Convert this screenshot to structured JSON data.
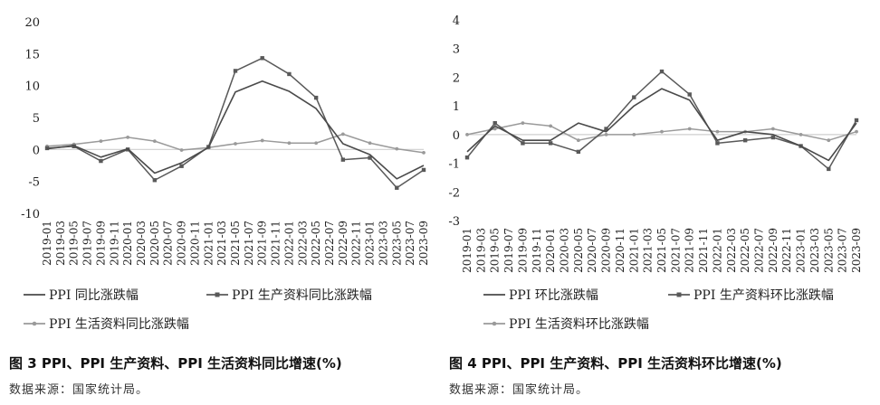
{
  "chart_data": [
    {
      "type": "line",
      "ylim": [
        -10,
        20
      ],
      "yticks": [
        -10,
        -5,
        0,
        5,
        10,
        15,
        20
      ],
      "categories": [
        "2019-01",
        "2019-03",
        "2019-05",
        "2019-07",
        "2019-09",
        "2019-11",
        "2020-01",
        "2020-03",
        "2020-05",
        "2020-07",
        "2020-09",
        "2020-11",
        "2021-01",
        "2021-03",
        "2021-05",
        "2021-07",
        "2021-09",
        "2021-11",
        "2022-01",
        "2022-03",
        "2022-05",
        "2022-07",
        "2022-09",
        "2022-11",
        "2023-01",
        "2023-03",
        "2023-05",
        "2023-07",
        "2023-09"
      ],
      "x": [
        "2019-01",
        "2019-05",
        "2019-09",
        "2020-01",
        "2020-05",
        "2020-09",
        "2021-01",
        "2021-05",
        "2021-09",
        "2022-01",
        "2022-05",
        "2022-09",
        "2023-01",
        "2023-05",
        "2023-09"
      ],
      "series": [
        {
          "name": "PPI 同比涨跌幅",
          "color": "#4a4a4a",
          "marker": "none",
          "values": [
            0.1,
            0.6,
            -1.2,
            0.1,
            -3.7,
            -2.1,
            0.3,
            9.0,
            10.7,
            9.1,
            6.4,
            0.9,
            -0.8,
            -4.6,
            -2.5
          ]
        },
        {
          "name": "PPI 生产资料同比涨跌幅",
          "color": "#595959",
          "marker": "square",
          "values": [
            0.2,
            0.5,
            -1.8,
            0.0,
            -4.8,
            -2.6,
            0.4,
            12.3,
            14.3,
            11.8,
            8.1,
            -1.6,
            -1.3,
            -6.0,
            -3.2
          ]
        },
        {
          "name": "PPI 生活资料同比涨跌幅",
          "color": "#9a9a9a",
          "marker": "dot",
          "values": [
            0.5,
            0.8,
            1.3,
            1.9,
            1.3,
            -0.1,
            0.3,
            0.9,
            1.4,
            1.0,
            1.0,
            2.4,
            1.0,
            0.1,
            -0.5
          ]
        }
      ]
    },
    {
      "type": "line",
      "ylim": [
        -3,
        4
      ],
      "yticks": [
        -3,
        -2,
        -1,
        0,
        1,
        2,
        3,
        4
      ],
      "categories": [
        "2019-01",
        "2019-03",
        "2019-05",
        "2019-07",
        "2019-09",
        "2019-11",
        "2020-01",
        "2020-03",
        "2020-05",
        "2020-07",
        "2020-09",
        "2020-11",
        "2021-01",
        "2021-03",
        "2021-05",
        "2021-07",
        "2021-09",
        "2021-11",
        "2022-01",
        "2022-03",
        "2022-05",
        "2022-07",
        "2022-09",
        "2022-11",
        "2023-01",
        "2023-03",
        "2023-05",
        "2023-07",
        "2023-09"
      ],
      "x": [
        "2019-01",
        "2019-05",
        "2019-09",
        "2020-01",
        "2020-05",
        "2020-09",
        "2021-01",
        "2021-05",
        "2021-09",
        "2022-01",
        "2022-05",
        "2022-09",
        "2023-01",
        "2023-05",
        "2023-09"
      ],
      "series": [
        {
          "name": "PPI 环比涨跌幅",
          "color": "#4a4a4a",
          "marker": "none",
          "values": [
            -0.6,
            0.3,
            -0.2,
            -0.2,
            0.4,
            0.1,
            1.0,
            1.6,
            1.2,
            -0.2,
            0.1,
            0.0,
            -0.4,
            -0.9,
            0.4
          ]
        },
        {
          "name": "PPI 生产资料环比涨跌幅",
          "color": "#595959",
          "marker": "square",
          "values": [
            -0.8,
            0.4,
            -0.3,
            -0.3,
            -0.6,
            0.2,
            1.3,
            2.2,
            1.4,
            -0.3,
            -0.2,
            -0.1,
            -0.4,
            -1.2,
            0.5
          ]
        },
        {
          "name": "PPI 生活资料环比涨跌幅",
          "color": "#9a9a9a",
          "marker": "dot",
          "values": [
            0.0,
            0.2,
            0.4,
            0.3,
            -0.2,
            0.0,
            0.0,
            0.1,
            0.2,
            0.1,
            0.1,
            0.2,
            0.0,
            -0.2,
            0.1
          ]
        }
      ]
    }
  ],
  "captions": {
    "left": "图 3  PPI、PPI 生产资料、PPI 生活资料同比增速(%)",
    "right": "图 4  PPI、PPI 生产资料、PPI 生活资料环比增速(%)"
  },
  "source": {
    "left": "数据来源：国家统计局。",
    "right": "数据来源：国家统计局。"
  }
}
